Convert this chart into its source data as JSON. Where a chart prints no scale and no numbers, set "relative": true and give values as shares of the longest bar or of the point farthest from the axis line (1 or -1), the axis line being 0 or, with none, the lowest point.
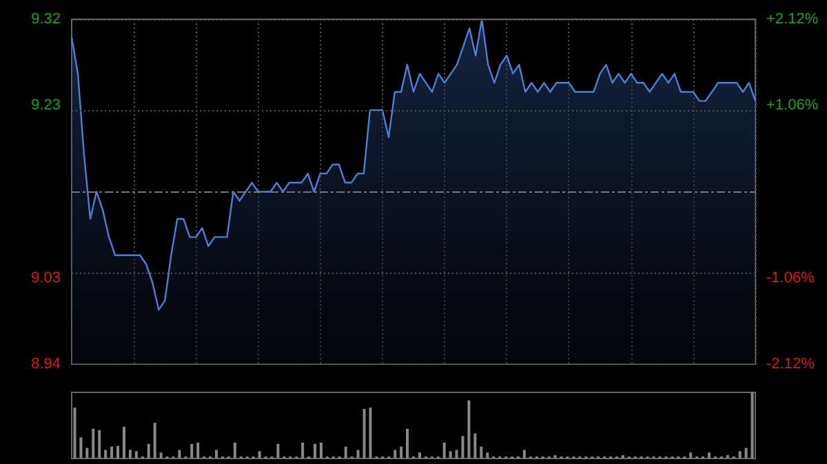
{
  "chart_data": [
    {
      "type": "area",
      "categories": [
        null,
        null,
        null,
        null,
        null,
        null,
        null,
        null,
        null,
        null,
        null,
        null,
        null,
        null,
        null,
        null,
        null,
        null,
        null,
        null,
        null,
        null,
        null,
        null,
        null,
        null,
        null,
        null,
        null,
        null,
        null,
        null,
        null,
        null,
        null,
        null,
        null,
        null,
        null,
        null,
        null,
        null,
        null,
        null,
        null,
        null,
        null,
        null,
        null,
        null,
        null,
        null,
        null,
        null,
        null,
        null,
        null,
        null,
        null,
        null,
        null,
        null,
        null,
        null,
        null,
        null,
        null,
        null,
        null,
        null,
        null,
        null,
        null,
        null,
        null,
        null,
        null,
        null,
        null,
        null,
        null,
        null,
        null,
        null,
        null,
        null,
        null,
        null,
        null,
        null,
        null,
        null,
        null,
        null,
        null,
        null,
        null,
        null,
        null,
        null,
        null,
        null,
        null,
        null,
        null,
        null,
        null,
        null,
        null,
        null,
        null
      ],
      "series": [
        {
          "color": "#4a80d8",
          "values": [
            9.3,
            9.26,
            9.17,
            9.1,
            9.13,
            9.11,
            9.08,
            9.06,
            9.06,
            9.06,
            9.06,
            9.06,
            9.05,
            9.03,
            9.0,
            9.01,
            9.06,
            9.1,
            9.1,
            9.08,
            9.08,
            9.09,
            9.07,
            9.08,
            9.08,
            9.08,
            9.13,
            9.12,
            9.13,
            9.14,
            9.13,
            9.13,
            9.13,
            9.14,
            9.13,
            9.14,
            9.14,
            9.14,
            9.15,
            9.13,
            9.15,
            9.15,
            9.16,
            9.16,
            9.14,
            9.14,
            9.15,
            9.15,
            9.22,
            9.22,
            9.22,
            9.19,
            9.24,
            9.24,
            9.27,
            9.24,
            9.26,
            9.25,
            9.24,
            9.26,
            9.25,
            9.26,
            9.27,
            9.29,
            9.31,
            9.28,
            9.32,
            9.27,
            9.25,
            9.27,
            9.28,
            9.26,
            9.27,
            9.24,
            9.25,
            9.24,
            9.25,
            9.24,
            9.25,
            9.25,
            9.25,
            9.24,
            9.24,
            9.24,
            9.24,
            9.26,
            9.27,
            9.25,
            9.26,
            9.25,
            9.26,
            9.25,
            9.25,
            9.24,
            9.25,
            9.26,
            9.25,
            9.26,
            9.24,
            9.24,
            9.24,
            9.23,
            9.23,
            9.24,
            9.25,
            9.25,
            9.25,
            9.25,
            9.24,
            9.25,
            9.23
          ]
        }
      ],
      "ylim": [
        8.94,
        9.32
      ],
      "yticks": [
        8.94,
        {
          "value": 9.035,
          "label": "9.03"
        },
        {
          "value": 9.225,
          "label": "9.23"
        },
        9.32
      ],
      "y2lim": [
        -2.12,
        2.12
      ],
      "y2ticks": [
        {
          "value": -2.12,
          "label": "-2.12%"
        },
        {
          "value": -1.06,
          "label": "-1.06%"
        },
        {
          "value": 1.06,
          "label": "+1.06%"
        },
        {
          "value": 2.12,
          "label": "+2.12%"
        }
      ],
      "ref_lines": [
        {
          "axis": "y",
          "value": 9.13,
          "label": null,
          "color": "#777777",
          "line_style": "dashed"
        }
      ],
      "grid": true,
      "tick_labels": "y"
    },
    {
      "type": "bar",
      "relative": true,
      "categories": [
        null,
        null,
        null,
        null,
        null,
        null,
        null,
        null,
        null,
        null,
        null,
        null,
        null,
        null,
        null,
        null,
        null,
        null,
        null,
        null,
        null,
        null,
        null,
        null,
        null,
        null,
        null,
        null,
        null,
        null,
        null,
        null,
        null,
        null,
        null,
        null,
        null,
        null,
        null,
        null,
        null,
        null,
        null,
        null,
        null,
        null,
        null,
        null,
        null,
        null,
        null,
        null,
        null,
        null,
        null,
        null,
        null,
        null,
        null,
        null,
        null,
        null,
        null,
        null,
        null,
        null,
        null,
        null,
        null,
        null,
        null,
        null,
        null,
        null,
        null,
        null,
        null,
        null,
        null,
        null,
        null,
        null,
        null,
        null,
        null,
        null,
        null,
        null,
        null,
        null,
        null,
        null,
        null,
        null,
        null,
        null,
        null,
        null,
        null,
        null,
        null,
        null,
        null,
        null,
        null,
        null,
        null,
        null,
        null,
        null,
        null
      ],
      "series": [
        {
          "color": "#888888",
          "values": [
            0.77,
            0.32,
            0.16,
            0.45,
            0.43,
            0.13,
            0.18,
            0.19,
            0.48,
            0.13,
            0.11,
            0.03,
            0.22,
            0.54,
            0.09,
            0.03,
            0.03,
            0.13,
            0.03,
            0.22,
            0.24,
            0.03,
            0.03,
            0.13,
            0.03,
            0.03,
            0.24,
            0.03,
            0.03,
            0.03,
            0.11,
            0.03,
            0.03,
            0.22,
            0.03,
            0.03,
            0.03,
            0.24,
            0.03,
            0.22,
            0.24,
            0.03,
            0.03,
            0.03,
            0.18,
            0.03,
            0.13,
            0.75,
            0.77,
            0.03,
            0.03,
            0.03,
            0.13,
            0.18,
            0.45,
            0.03,
            0.09,
            0.03,
            0.03,
            0.03,
            0.24,
            0.11,
            0.13,
            0.34,
            0.88,
            0.38,
            0.18,
            0.09,
            0.03,
            0.03,
            0.03,
            0.03,
            0.03,
            0.13,
            0.03,
            0.03,
            0.03,
            0.03,
            0.05,
            0.03,
            0.03,
            0.03,
            0.03,
            0.03,
            0.03,
            0.03,
            0.03,
            0.03,
            0.03,
            0.05,
            0.03,
            0.03,
            0.03,
            0.03,
            0.03,
            0.03,
            0.03,
            0.03,
            0.03,
            0.03,
            0.09,
            0.03,
            0.03,
            0.09,
            0.03,
            0.03,
            0.05,
            0.03,
            0.11,
            0.16,
            1
          ]
        }
      ],
      "tick_labels": false
    }
  ]
}
